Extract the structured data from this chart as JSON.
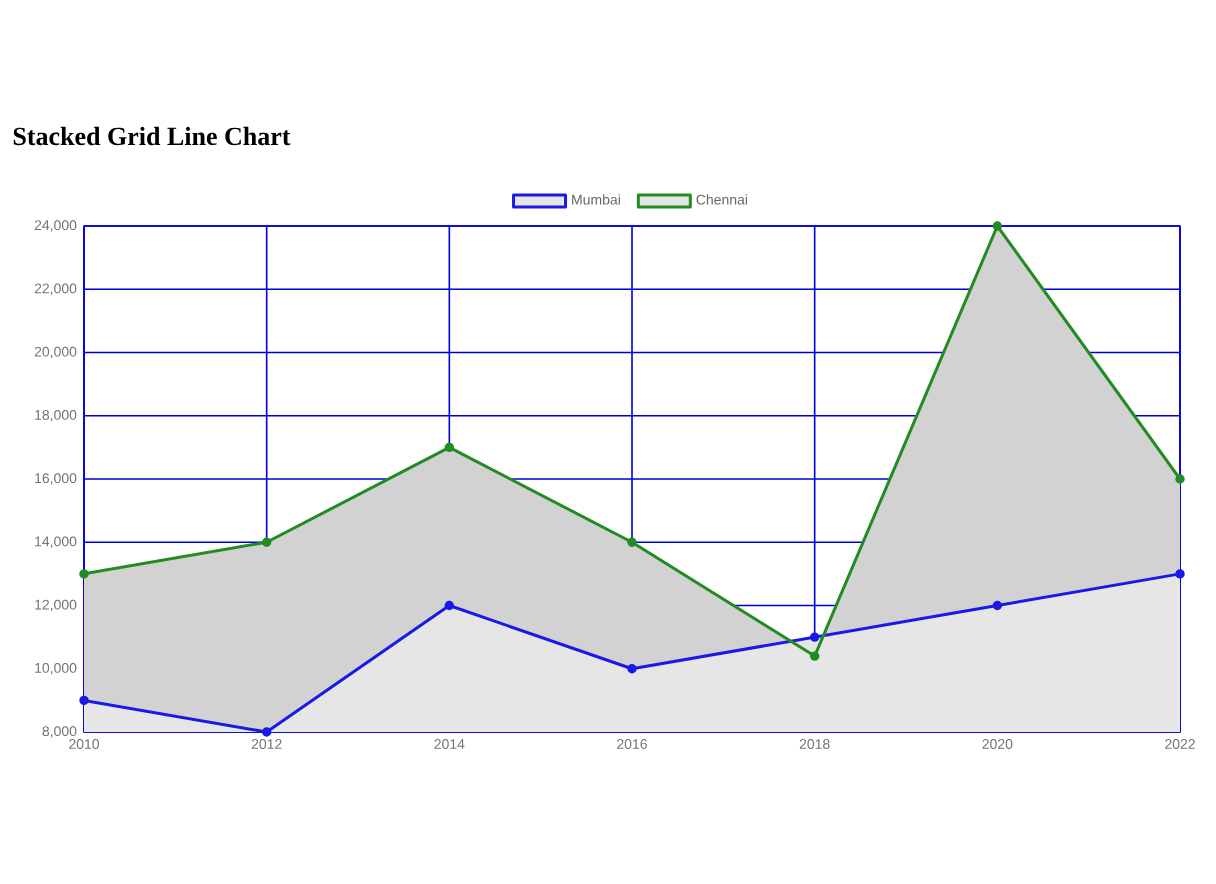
{
  "chart_data": {
    "type": "area",
    "title": "Stacked Grid Line Chart",
    "x": [
      2010,
      2012,
      2014,
      2016,
      2018,
      2020,
      2022
    ],
    "series": [
      {
        "name": "Mumbai",
        "color": "#1a1ae6",
        "values": [
          9000,
          8000,
          12000,
          10000,
          11000,
          12000,
          13000
        ]
      },
      {
        "name": "Chennai",
        "color": "#228b22",
        "values": [
          13000,
          14000,
          17000,
          14000,
          10400,
          24000,
          16000
        ]
      }
    ],
    "xlim": [
      2010,
      2022
    ],
    "xticks": [
      2010,
      2012,
      2014,
      2016,
      2018,
      2020,
      2022
    ],
    "ylim": [
      8000,
      24000
    ],
    "yticks": [
      {
        "value": 8000,
        "label": "8,000"
      },
      {
        "value": 10000,
        "label": "10,000"
      },
      {
        "value": 12000,
        "label": "12,000"
      },
      {
        "value": 14000,
        "label": "14,000"
      },
      {
        "value": 16000,
        "label": "16,000"
      },
      {
        "value": 18000,
        "label": "18,000"
      },
      {
        "value": 20000,
        "label": "20,000"
      },
      {
        "value": 22000,
        "label": "22,000"
      },
      {
        "value": 24000,
        "label": "24,000"
      }
    ],
    "grid": true,
    "legend": "top",
    "marker": "circle",
    "line_style": "solid"
  }
}
